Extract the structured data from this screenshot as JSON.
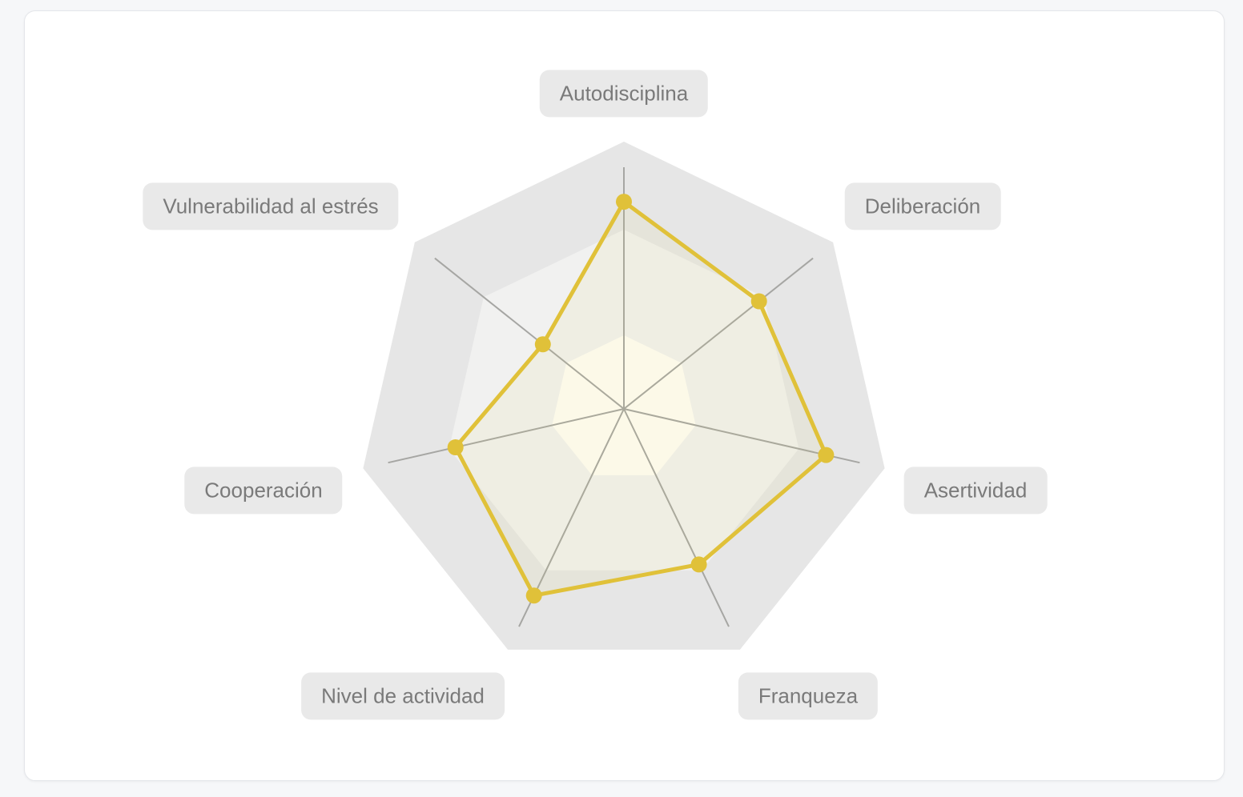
{
  "page": {
    "background_color": "#f6f7f9"
  },
  "card": {
    "background_color": "#ffffff",
    "border_color": "#e4e6ea"
  },
  "chart_data": {
    "type": "radar",
    "title": "",
    "categories": [
      "Autodisciplina",
      "Deliberación",
      "Asertividad",
      "Franqueza",
      "Nivel de actividad",
      "Cooperación",
      "Vulnerabilidad al estrés"
    ],
    "series": [
      {
        "values": [
          6,
          5,
          6,
          5,
          6,
          5,
          3
        ]
      }
    ],
    "scale": {
      "min": 0,
      "max": 7
    },
    "grid": {
      "shape": "heptagon",
      "spokes": 7,
      "rings_visible": 3,
      "tick_labels": "none",
      "legend": "none"
    },
    "colors": {
      "series_stroke": "#e0c139",
      "series_fill": "rgba(220,205,80,0.08)",
      "marker_fill": "#e0c139",
      "grid_outer": "#e6e6e6",
      "grid_mid": "#f1f1f0",
      "grid_inner": "#fffdf6",
      "spoke": "#a6a6a3",
      "label_bg": "#e9e9e9",
      "label_text": "#7a7a7a"
    }
  }
}
